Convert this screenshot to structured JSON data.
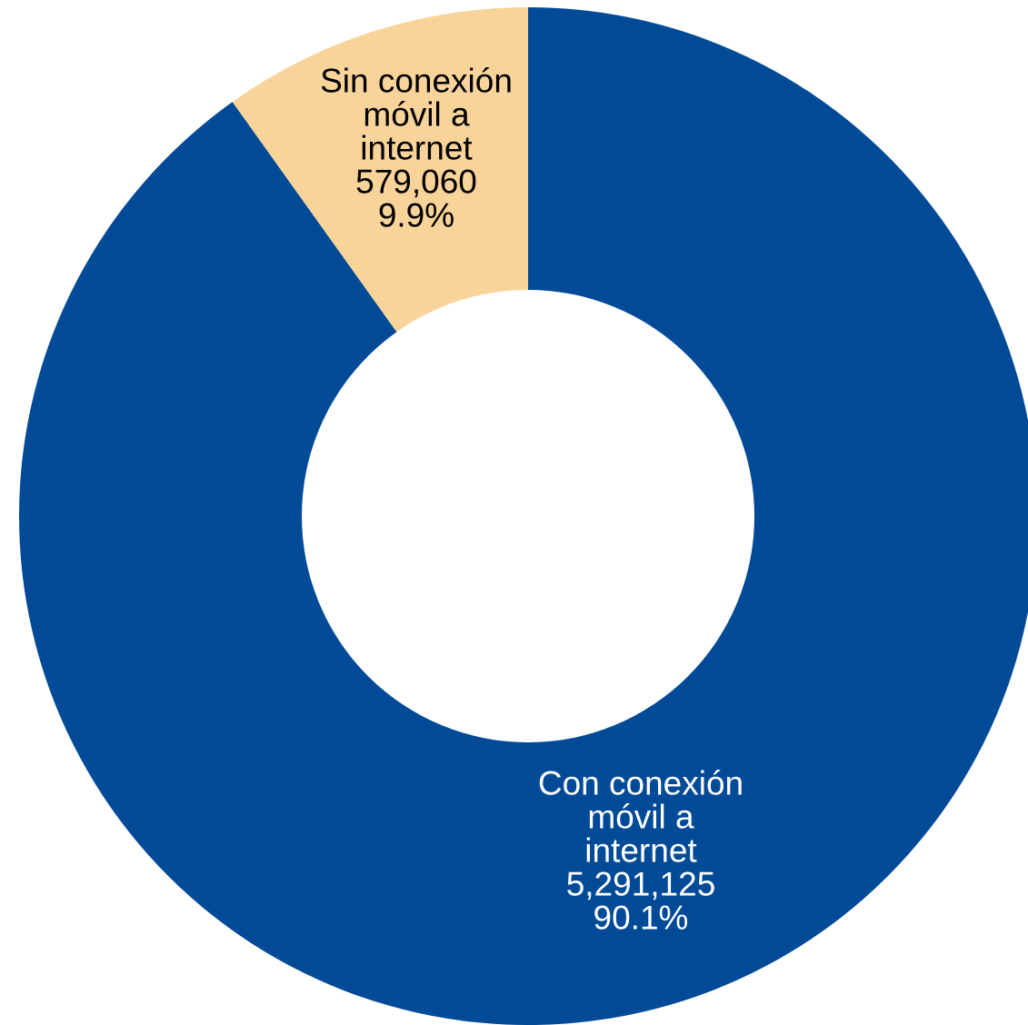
{
  "chart_data": {
    "type": "pie",
    "variant": "donut",
    "slices": [
      {
        "label_lines": [
          "Con conexión",
          "móvil a",
          "internet"
        ],
        "value": 5291125,
        "value_text": "5,291,125",
        "percent": 90.1,
        "percent_text": "90.1%",
        "color": "#004a97",
        "text_color": "#ffffff"
      },
      {
        "label_lines": [
          "Sin conexión",
          "móvil a",
          "internet"
        ],
        "value": 579060,
        "value_text": "579,060",
        "percent": 9.9,
        "percent_text": "9.9%",
        "color": "#f9d49a",
        "text_color": "#000000"
      }
    ],
    "start_angle": "12 o'clock",
    "direction": "clockwise",
    "legend": "none",
    "labels": "inside slices"
  }
}
